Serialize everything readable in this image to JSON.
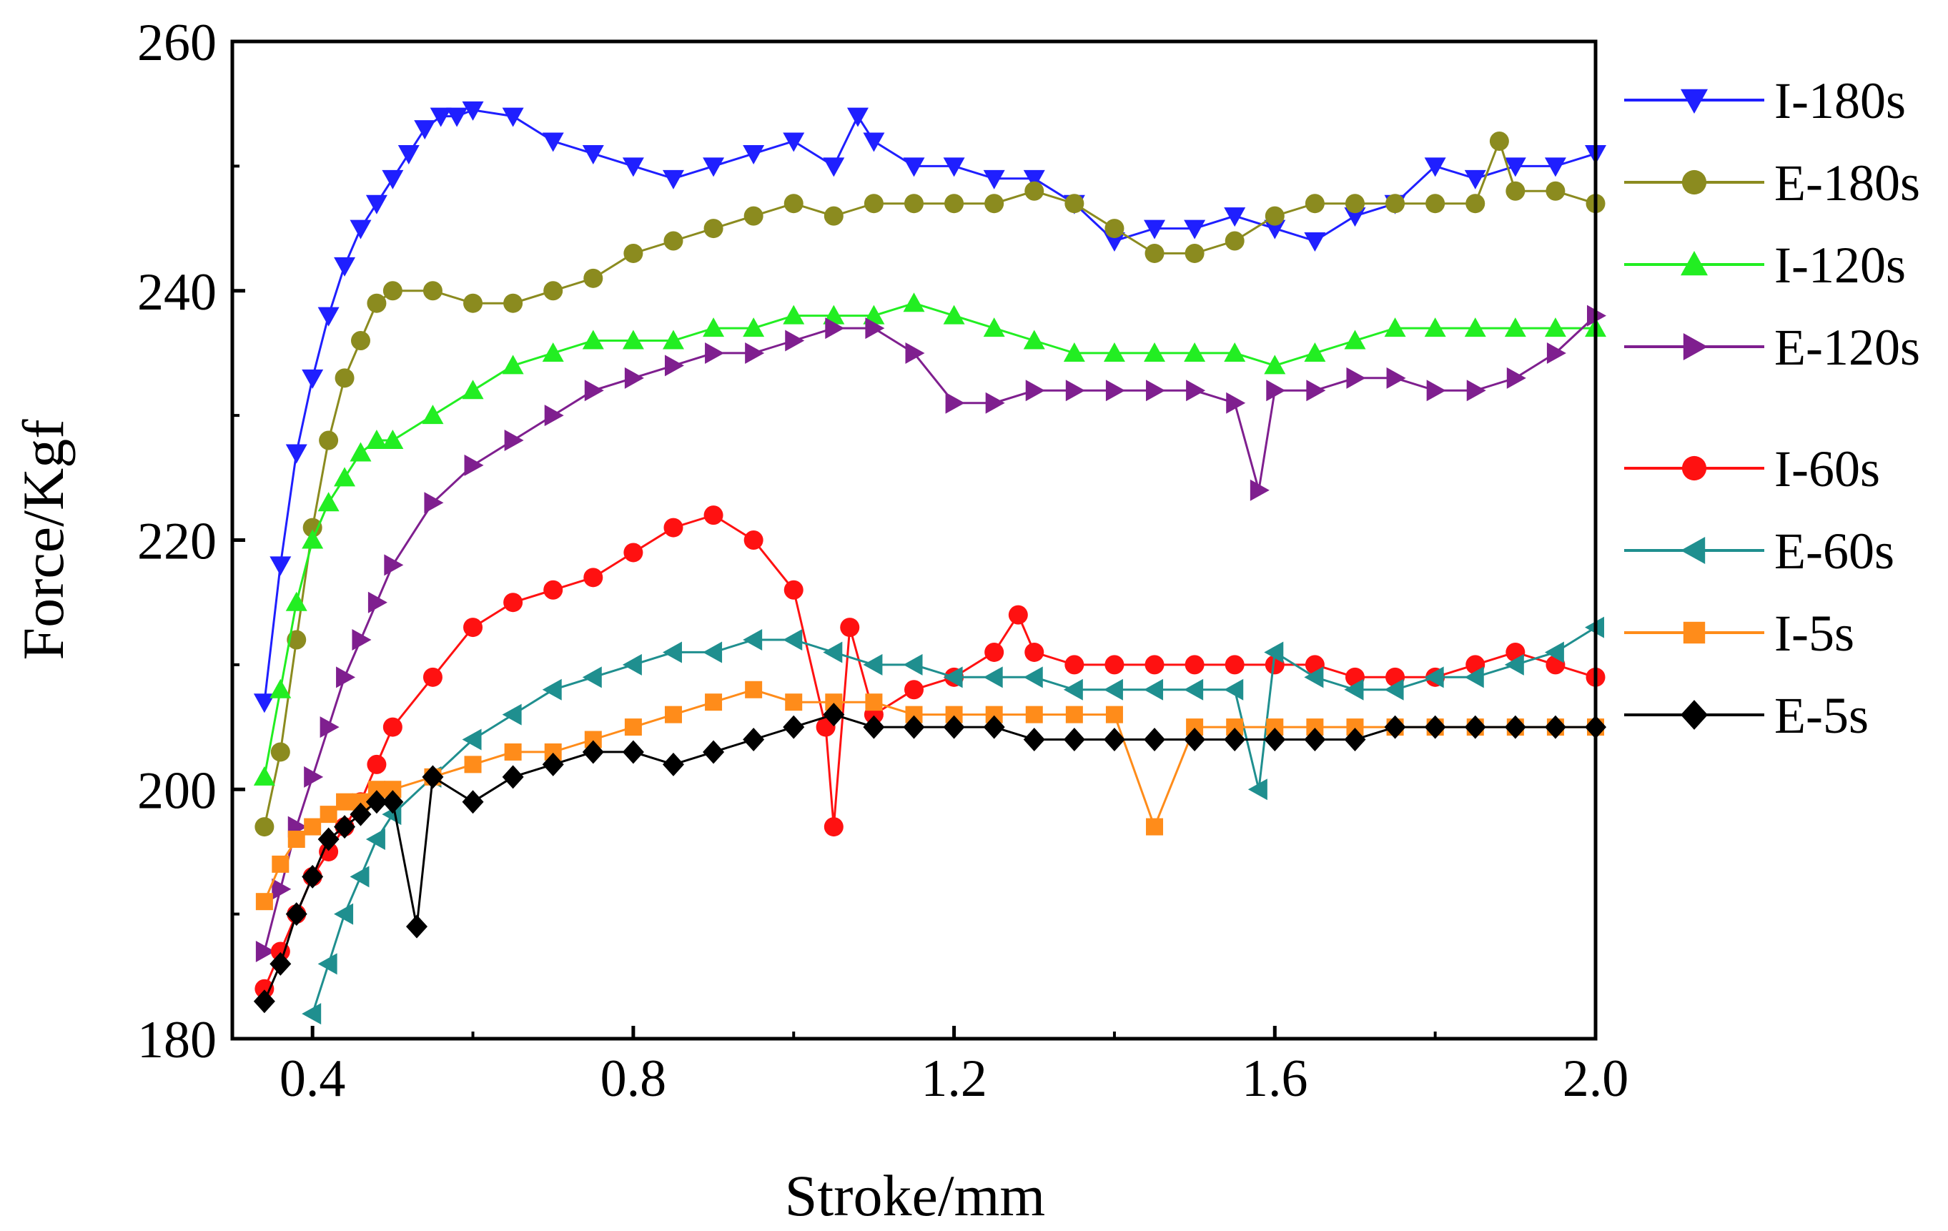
{
  "chart_data": {
    "type": "scatter",
    "xlabel": "Stroke/mm",
    "ylabel": "Force/Kgf",
    "xlim": [
      0.3,
      2.0
    ],
    "ylim": [
      180,
      260
    ],
    "x_ticks": [
      "0.4",
      "0.8",
      "1.2",
      "1.6",
      "2.0"
    ],
    "y_ticks": [
      "180",
      "200",
      "220",
      "240",
      "260"
    ],
    "grid": false,
    "legend_position": "right",
    "series": [
      {
        "name": "I-180s",
        "color": "#1F1FFF",
        "marker": "triangle-down",
        "x": [
          0.34,
          0.36,
          0.38,
          0.4,
          0.42,
          0.44,
          0.46,
          0.48,
          0.5,
          0.52,
          0.54,
          0.56,
          0.58,
          0.6,
          0.65,
          0.7,
          0.75,
          0.8,
          0.85,
          0.9,
          0.95,
          1.0,
          1.05,
          1.08,
          1.1,
          1.15,
          1.2,
          1.25,
          1.3,
          1.35,
          1.4,
          1.45,
          1.5,
          1.55,
          1.6,
          1.65,
          1.7,
          1.75,
          1.8,
          1.85,
          1.9,
          1.95,
          2.0
        ],
        "y": [
          207,
          218,
          227,
          233,
          238,
          242,
          245,
          247,
          249,
          251,
          253,
          254,
          254,
          254.5,
          254,
          252,
          251,
          250,
          249,
          250,
          251,
          252,
          250,
          254,
          252,
          250,
          250,
          249,
          249,
          247,
          244,
          245,
          245,
          246,
          245,
          244,
          246,
          247,
          250,
          249,
          250,
          250,
          251
        ]
      },
      {
        "name": "E-180s",
        "color": "#8B8B1F",
        "marker": "circle",
        "x": [
          0.34,
          0.36,
          0.38,
          0.4,
          0.42,
          0.44,
          0.46,
          0.48,
          0.5,
          0.55,
          0.6,
          0.65,
          0.7,
          0.75,
          0.8,
          0.85,
          0.9,
          0.95,
          1.0,
          1.05,
          1.1,
          1.15,
          1.2,
          1.25,
          1.3,
          1.35,
          1.4,
          1.45,
          1.5,
          1.55,
          1.6,
          1.65,
          1.7,
          1.75,
          1.8,
          1.85,
          1.88,
          1.9,
          1.95,
          2.0
        ],
        "y": [
          197,
          203,
          212,
          221,
          228,
          233,
          236,
          239,
          240,
          240,
          239,
          239,
          240,
          241,
          243,
          244,
          245,
          246,
          247,
          246,
          247,
          247,
          247,
          247,
          248,
          247,
          245,
          243,
          243,
          244,
          246,
          247,
          247,
          247,
          247,
          247,
          252,
          248,
          248,
          247
        ]
      },
      {
        "name": "I-120s",
        "color": "#22EE22",
        "marker": "triangle-up",
        "x": [
          0.34,
          0.36,
          0.38,
          0.4,
          0.42,
          0.44,
          0.46,
          0.48,
          0.5,
          0.55,
          0.6,
          0.65,
          0.7,
          0.75,
          0.8,
          0.85,
          0.9,
          0.95,
          1.0,
          1.05,
          1.1,
          1.15,
          1.2,
          1.25,
          1.3,
          1.35,
          1.4,
          1.45,
          1.5,
          1.55,
          1.6,
          1.65,
          1.7,
          1.75,
          1.8,
          1.85,
          1.9,
          1.95,
          2.0
        ],
        "y": [
          201,
          208,
          215,
          220,
          223,
          225,
          227,
          228,
          228,
          230,
          232,
          234,
          235,
          236,
          236,
          236,
          237,
          237,
          238,
          238,
          238,
          239,
          238,
          237,
          236,
          235,
          235,
          235,
          235,
          235,
          234,
          235,
          236,
          237,
          237,
          237,
          237,
          237,
          237
        ]
      },
      {
        "name": "E-120s",
        "color": "#7F1F8F",
        "marker": "triangle-right",
        "x": [
          0.34,
          0.36,
          0.38,
          0.4,
          0.42,
          0.44,
          0.46,
          0.48,
          0.5,
          0.55,
          0.6,
          0.65,
          0.7,
          0.75,
          0.8,
          0.85,
          0.9,
          0.95,
          1.0,
          1.05,
          1.1,
          1.15,
          1.2,
          1.25,
          1.3,
          1.35,
          1.4,
          1.45,
          1.5,
          1.55,
          1.58,
          1.6,
          1.65,
          1.7,
          1.75,
          1.8,
          1.85,
          1.9,
          1.95,
          2.0
        ],
        "y": [
          187,
          192,
          197,
          201,
          205,
          209,
          212,
          215,
          218,
          223,
          226,
          228,
          230,
          232,
          233,
          234,
          235,
          235,
          236,
          237,
          237,
          235,
          231,
          231,
          232,
          232,
          232,
          232,
          232,
          231,
          224,
          232,
          232,
          233,
          233,
          232,
          232,
          233,
          235,
          238
        ]
      },
      {
        "name": "I-60s",
        "color": "#FF1111",
        "marker": "circle",
        "x": [
          0.34,
          0.36,
          0.38,
          0.4,
          0.42,
          0.44,
          0.46,
          0.48,
          0.5,
          0.55,
          0.6,
          0.65,
          0.7,
          0.75,
          0.8,
          0.85,
          0.9,
          0.95,
          1.0,
          1.04,
          1.05,
          1.07,
          1.1,
          1.15,
          1.2,
          1.25,
          1.28,
          1.3,
          1.35,
          1.4,
          1.45,
          1.5,
          1.55,
          1.6,
          1.65,
          1.7,
          1.75,
          1.8,
          1.85,
          1.9,
          1.95,
          2.0
        ],
        "y": [
          184,
          187,
          190,
          193,
          195,
          197,
          199,
          202,
          205,
          209,
          213,
          215,
          216,
          217,
          219,
          221,
          222,
          220,
          216,
          205,
          197,
          213,
          206,
          208,
          209,
          211,
          214,
          211,
          210,
          210,
          210,
          210,
          210,
          210,
          210,
          209,
          209,
          209,
          210,
          211,
          210,
          209
        ]
      },
      {
        "name": "E-60s",
        "color": "#1F8F8F",
        "marker": "triangle-left",
        "x": [
          0.4,
          0.42,
          0.44,
          0.46,
          0.48,
          0.5,
          0.55,
          0.6,
          0.65,
          0.7,
          0.75,
          0.8,
          0.85,
          0.9,
          0.95,
          1.0,
          1.05,
          1.1,
          1.15,
          1.2,
          1.25,
          1.3,
          1.35,
          1.4,
          1.45,
          1.5,
          1.55,
          1.58,
          1.6,
          1.65,
          1.7,
          1.75,
          1.8,
          1.85,
          1.9,
          1.95,
          2.0
        ],
        "y": [
          182,
          186,
          190,
          193,
          196,
          198,
          201,
          204,
          206,
          208,
          209,
          210,
          211,
          211,
          212,
          212,
          211,
          210,
          210,
          209,
          209,
          209,
          208,
          208,
          208,
          208,
          208,
          200,
          211,
          209,
          208,
          208,
          209,
          209,
          210,
          211,
          213
        ]
      },
      {
        "name": "I-5s",
        "color": "#FF8C1A",
        "marker": "square",
        "x": [
          0.34,
          0.36,
          0.38,
          0.4,
          0.42,
          0.44,
          0.46,
          0.48,
          0.5,
          0.55,
          0.6,
          0.65,
          0.7,
          0.75,
          0.8,
          0.85,
          0.9,
          0.95,
          1.0,
          1.05,
          1.1,
          1.15,
          1.2,
          1.25,
          1.3,
          1.35,
          1.4,
          1.45,
          1.5,
          1.55,
          1.6,
          1.65,
          1.7,
          1.75,
          1.8,
          1.85,
          1.9,
          1.95,
          2.0
        ],
        "y": [
          191,
          194,
          196,
          197,
          198,
          199,
          199,
          200,
          200,
          201,
          202,
          203,
          203,
          204,
          205,
          206,
          207,
          208,
          207,
          207,
          207,
          206,
          206,
          206,
          206,
          206,
          206,
          197,
          205,
          205,
          205,
          205,
          205,
          205,
          205,
          205,
          205,
          205,
          205
        ]
      },
      {
        "name": "E-5s",
        "color": "#000000",
        "marker": "diamond",
        "x": [
          0.34,
          0.36,
          0.38,
          0.4,
          0.42,
          0.44,
          0.46,
          0.48,
          0.5,
          0.53,
          0.55,
          0.6,
          0.65,
          0.7,
          0.75,
          0.8,
          0.85,
          0.9,
          0.95,
          1.0,
          1.05,
          1.1,
          1.15,
          1.2,
          1.25,
          1.3,
          1.35,
          1.4,
          1.45,
          1.5,
          1.55,
          1.6,
          1.65,
          1.7,
          1.75,
          1.8,
          1.85,
          1.9,
          1.95,
          2.0
        ],
        "y": [
          183,
          186,
          190,
          193,
          196,
          197,
          198,
          199,
          199,
          189,
          201,
          199,
          201,
          202,
          203,
          203,
          202,
          203,
          204,
          205,
          206,
          205,
          205,
          205,
          205,
          204,
          204,
          204,
          204,
          204,
          204,
          204,
          204,
          204,
          205,
          205,
          205,
          205,
          205,
          205
        ]
      }
    ]
  }
}
